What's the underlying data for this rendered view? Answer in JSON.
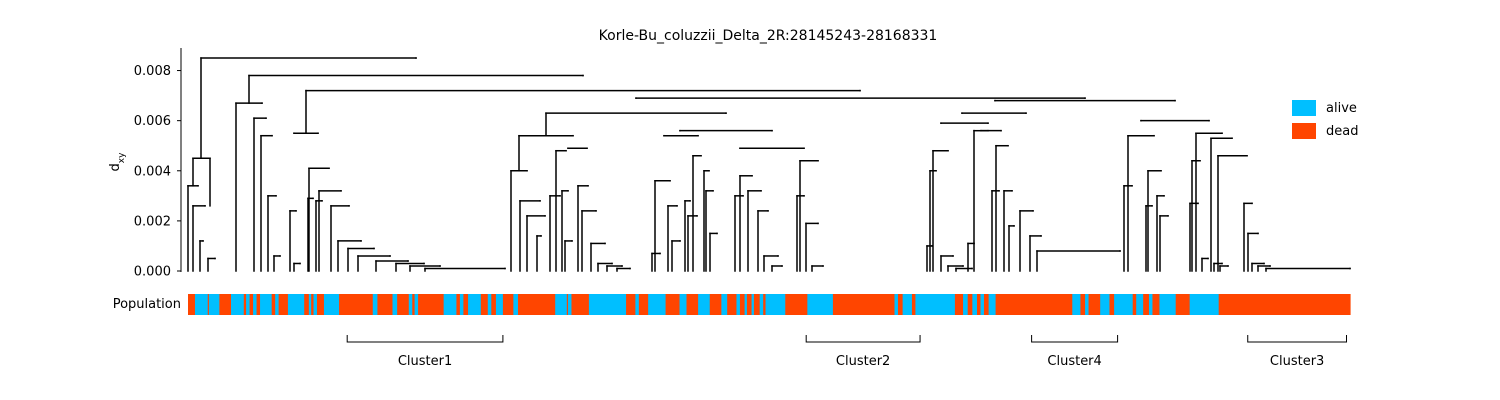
{
  "chart_data": {
    "type": "dendrogram",
    "title": "Korle-Bu_coluzzii_Delta_2R:28145243-28168331",
    "ylabel_main": "d",
    "ylabel_sub": "xy",
    "ylim": [
      0,
      0.0089
    ],
    "yticks": [
      {
        "v": 0.0,
        "label": "0.000"
      },
      {
        "v": 0.002,
        "label": "0.002"
      },
      {
        "v": 0.004,
        "label": "0.004"
      },
      {
        "v": 0.006,
        "label": "0.006"
      },
      {
        "v": 0.008,
        "label": "0.008"
      }
    ],
    "legend": {
      "placement": "top-right",
      "items": [
        {
          "label": "alive",
          "color": "#00bfff"
        },
        {
          "label": "dead",
          "color": "#ff4500"
        }
      ]
    },
    "population_label": "Population",
    "n_leaves": 1000,
    "population_segments": [
      [
        "dead",
        [
          0,
          6
        ]
      ],
      [
        "alive",
        [
          6,
          17
        ]
      ],
      [
        "dead",
        [
          17,
          18
        ]
      ],
      [
        "alive",
        [
          18,
          27
        ]
      ],
      [
        "dead",
        [
          27,
          37
        ]
      ],
      [
        "alive",
        [
          37,
          48
        ]
      ],
      [
        "dead",
        [
          48,
          50
        ]
      ],
      [
        "alive",
        [
          50,
          53
        ]
      ],
      [
        "dead",
        [
          53,
          56
        ]
      ],
      [
        "alive",
        [
          56,
          59
        ]
      ],
      [
        "dead",
        [
          59,
          62
        ]
      ],
      [
        "alive",
        [
          62,
          72
        ]
      ],
      [
        "dead",
        [
          72,
          75
        ]
      ],
      [
        "alive",
        [
          75,
          78
        ]
      ],
      [
        "dead",
        [
          78,
          86
        ]
      ],
      [
        "alive",
        [
          86,
          100
        ]
      ],
      [
        "dead",
        [
          100,
          104
        ]
      ],
      [
        "alive",
        [
          104,
          106
        ]
      ],
      [
        "dead",
        [
          106,
          108
        ]
      ],
      [
        "alive",
        [
          108,
          111
        ]
      ],
      [
        "dead",
        [
          111,
          117
        ]
      ],
      [
        "alive",
        [
          117,
          130
        ]
      ],
      [
        "dead",
        [
          130,
          159
        ]
      ],
      [
        "alive",
        [
          159,
          163
        ]
      ],
      [
        "dead",
        [
          163,
          176
        ]
      ],
      [
        "alive",
        [
          176,
          180
        ]
      ],
      [
        "dead",
        [
          180,
          190
        ]
      ],
      [
        "alive",
        [
          190,
          193
        ]
      ],
      [
        "dead",
        [
          193,
          195
        ]
      ],
      [
        "alive",
        [
          195,
          198
        ]
      ],
      [
        "dead",
        [
          198,
          220
        ]
      ],
      [
        "alive",
        [
          220,
          231
        ]
      ],
      [
        "dead",
        [
          231,
          234
        ]
      ],
      [
        "alive",
        [
          234,
          237
        ]
      ],
      [
        "dead",
        [
          237,
          241
        ]
      ],
      [
        "alive",
        [
          241,
          252
        ]
      ],
      [
        "dead",
        [
          252,
          258
        ]
      ],
      [
        "alive",
        [
          258,
          261
        ]
      ],
      [
        "dead",
        [
          261,
          265
        ]
      ],
      [
        "alive",
        [
          265,
          271
        ]
      ],
      [
        "dead",
        [
          271,
          280
        ]
      ],
      [
        "alive",
        [
          280,
          284
        ]
      ],
      [
        "dead",
        [
          284,
          316
        ]
      ],
      [
        "alive",
        [
          316,
          326
        ]
      ],
      [
        "dead",
        [
          326,
          327
        ]
      ],
      [
        "alive",
        [
          327,
          330
        ]
      ],
      [
        "dead",
        [
          330,
          345
        ]
      ],
      [
        "alive",
        [
          345,
          377
        ]
      ],
      [
        "dead",
        [
          377,
          385
        ]
      ],
      [
        "alive",
        [
          385,
          388
        ]
      ],
      [
        "dead",
        [
          388,
          396
        ]
      ],
      [
        "alive",
        [
          396,
          411
        ]
      ],
      [
        "dead",
        [
          411,
          423
        ]
      ],
      [
        "alive",
        [
          423,
          429
        ]
      ],
      [
        "dead",
        [
          429,
          439
        ]
      ],
      [
        "alive",
        [
          439,
          449
        ]
      ],
      [
        "dead",
        [
          449,
          459
        ]
      ],
      [
        "alive",
        [
          459,
          464
        ]
      ],
      [
        "dead",
        [
          464,
          472
        ]
      ],
      [
        "alive",
        [
          472,
          475
        ]
      ],
      [
        "dead",
        [
          475,
          479
        ]
      ],
      [
        "alive",
        [
          479,
          481
        ]
      ],
      [
        "dead",
        [
          481,
          485
        ]
      ],
      [
        "alive",
        [
          485,
          487
        ]
      ],
      [
        "dead",
        [
          487,
          492
        ]
      ],
      [
        "alive",
        [
          492,
          495
        ]
      ],
      [
        "dead",
        [
          495,
          497
        ]
      ],
      [
        "alive",
        [
          497,
          514
        ]
      ],
      [
        "dead",
        [
          514,
          533
        ]
      ],
      [
        "alive",
        [
          533,
          555
        ]
      ],
      [
        "dead",
        [
          555,
          608
        ]
      ],
      [
        "alive",
        [
          608,
          611
        ]
      ],
      [
        "dead",
        [
          611,
          615
        ]
      ],
      [
        "alive",
        [
          615,
          623
        ]
      ],
      [
        "dead",
        [
          623,
          626
        ]
      ],
      [
        "alive",
        [
          626,
          660
        ]
      ],
      [
        "dead",
        [
          660,
          667
        ]
      ],
      [
        "alive",
        [
          667,
          671
        ]
      ],
      [
        "dead",
        [
          671,
          675
        ]
      ],
      [
        "alive",
        [
          675,
          679
        ]
      ],
      [
        "dead",
        [
          679,
          682
        ]
      ],
      [
        "alive",
        [
          682,
          685
        ]
      ],
      [
        "dead",
        [
          685,
          689
        ]
      ],
      [
        "alive",
        [
          689,
          695
        ]
      ],
      [
        "dead",
        [
          695,
          761
        ]
      ],
      [
        "alive",
        [
          761,
          768
        ]
      ],
      [
        "dead",
        [
          768,
          772
        ]
      ],
      [
        "alive",
        [
          772,
          775
        ]
      ],
      [
        "dead",
        [
          775,
          785
        ]
      ],
      [
        "alive",
        [
          785,
          793
        ]
      ],
      [
        "dead",
        [
          793,
          797
        ]
      ],
      [
        "alive",
        [
          797,
          813
        ]
      ],
      [
        "dead",
        [
          813,
          816
        ]
      ],
      [
        "alive",
        [
          816,
          822
        ]
      ],
      [
        "dead",
        [
          822,
          827
        ]
      ],
      [
        "alive",
        [
          827,
          830
        ]
      ],
      [
        "dead",
        [
          830,
          836
        ]
      ],
      [
        "alive",
        [
          836,
          850
        ]
      ],
      [
        "dead",
        [
          850,
          862
        ]
      ],
      [
        "alive",
        [
          862,
          887
        ]
      ],
      [
        "dead",
        [
          887,
          1000
        ]
      ]
    ],
    "clusters": [
      {
        "label": "Cluster1",
        "leaf_range": [
          137,
          271
        ]
      },
      {
        "label": "Cluster2",
        "leaf_range": [
          532,
          630
        ]
      },
      {
        "label": "Cluster4",
        "leaf_range": [
          726,
          800
        ]
      },
      {
        "label": "Cluster3",
        "leaf_range": [
          912,
          997
        ]
      }
    ],
    "merges": [
      {
        "h": 0.0085,
        "l": [
          0.13,
          0.0045
        ],
        "r": [
          196,
          0.0085
        ],
        "lx": 12,
        "rx": 196
      },
      {
        "h": 0.0078,
        "l": [
          0.0067,
          0.0067
        ],
        "r": [
          0.0083,
          0.0083
        ],
        "lx": 52,
        "rx": 339
      },
      {
        "h": 0.0072,
        "l": [
          0.0055,
          0.0055
        ],
        "r": [
          0.0072,
          0.0072
        ],
        "lx": 100,
        "rx": 575
      },
      {
        "h": 0.0071,
        "l": [
          0.0068,
          0.0068
        ],
        "r": [
          0.0072,
          0.0072
        ],
        "lx": 385,
        "rx": 773
      },
      {
        "h": 0.0069,
        "l": [
          0.0063,
          0.0063
        ],
        "r": [
          0.0068,
          0.0068
        ],
        "lx": 308,
        "rx": 760
      },
      {
        "h": 0.0068,
        "l": [
          0.0064,
          0.0064
        ],
        "r": [
          0.0068,
          0.0068
        ],
        "lx": 664,
        "rx": 848
      },
      {
        "h": 0.0063,
        "l": [
          0.0054,
          0.0054
        ],
        "r": [
          0.0056,
          0.0056
        ],
        "lx": 277,
        "rx": 434
      }
    ]
  }
}
